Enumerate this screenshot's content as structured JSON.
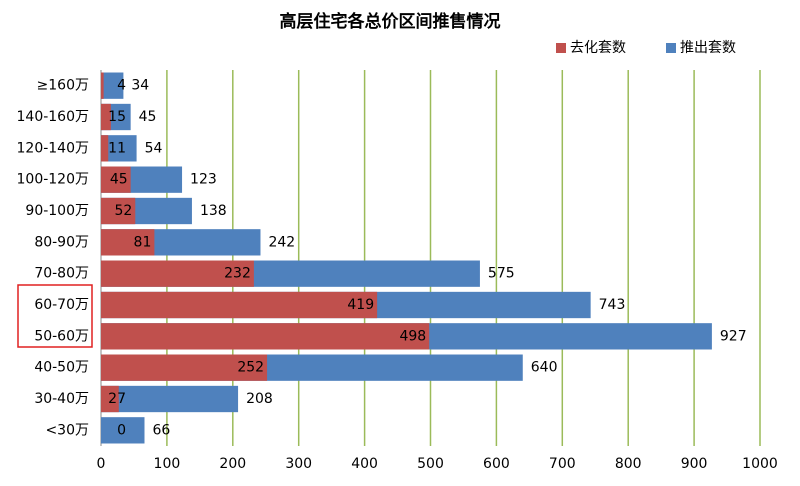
{
  "chart_data": {
    "type": "bar",
    "orientation": "horizontal",
    "title": "高层住宅各总价区间推售情况",
    "categories": [
      "≥160万",
      "140-160万",
      "120-140万",
      "100-120万",
      "90-100万",
      "80-90万",
      "70-80万",
      "60-70万",
      "50-60万",
      "40-50万",
      "30-40万",
      "<30万"
    ],
    "series": [
      {
        "name": "推出套数",
        "color": "#4f81bd",
        "values": [
          34,
          45,
          54,
          123,
          138,
          242,
          575,
          743,
          927,
          640,
          208,
          66
        ]
      },
      {
        "name": "去化套数",
        "color": "#c0504d",
        "values": [
          4,
          15,
          11,
          45,
          52,
          81,
          232,
          419,
          498,
          252,
          27,
          0
        ]
      }
    ],
    "xlim": [
      0,
      1000
    ],
    "xticks": [
      0,
      100,
      200,
      300,
      400,
      500,
      600,
      700,
      800,
      900,
      1000
    ],
    "grid": true,
    "legend": "top-right"
  }
}
